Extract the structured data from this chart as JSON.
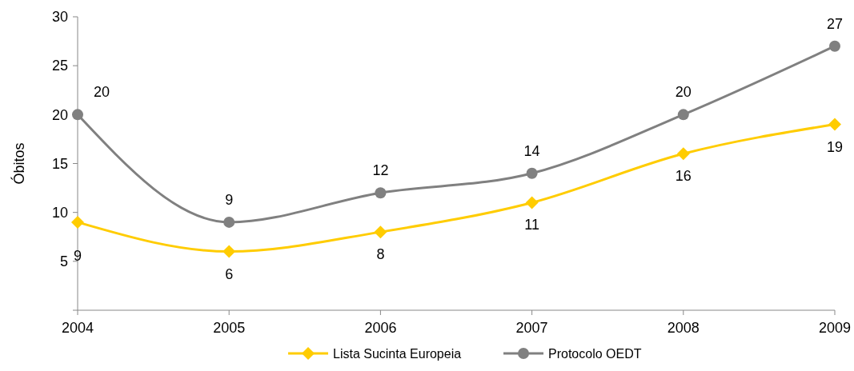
{
  "chart_data": {
    "type": "line",
    "ylabel": "Óbitos",
    "x": [
      2004,
      2005,
      2006,
      2007,
      2008,
      2009
    ],
    "xlim": [
      2004,
      2009
    ],
    "xticks": [
      2004,
      2005,
      2006,
      2007,
      2008,
      2009
    ],
    "ylim": [
      0,
      30
    ],
    "yticks": [
      {
        "value": 0,
        "label": null
      },
      5,
      10,
      15,
      20,
      25,
      30
    ],
    "series": [
      {
        "name": "Lista Sucinta Europeia",
        "color": "#ffcc00",
        "marker": "diamond",
        "values": [
          9,
          6,
          8,
          11,
          16,
          19
        ]
      },
      {
        "name": "Protocolo OEDT",
        "color": "#808080",
        "marker": "circle",
        "values": [
          20,
          9,
          12,
          14,
          20,
          27
        ]
      }
    ],
    "data_labels": true,
    "grid": false,
    "legend": "bottom",
    "line_style": "solid"
  }
}
